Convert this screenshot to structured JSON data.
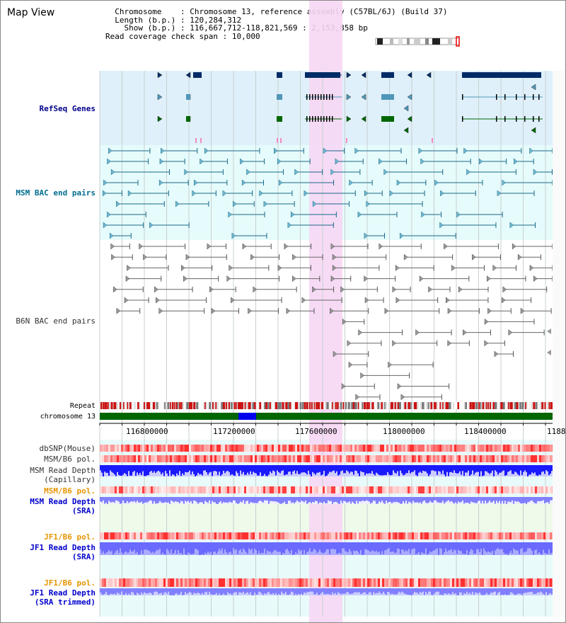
{
  "header": {
    "title": "Map View",
    "info": {
      "chromosome_label": "Chromosome",
      "chromosome_value": "Chromosome 13, reference assembly (C57BL/6J) (Build 37)",
      "length_label": "Length (b.p.)",
      "length_value": "120,284,312",
      "show_label": "Show (b.p.)",
      "show_value": "116,667,712-118,821,569 : 2,153,858 bp",
      "coverage_label": "Read coverage check span",
      "coverage_value": "10,000"
    }
  },
  "tracks": {
    "refseq": "RefSeq Genes",
    "msm_bac": "MSM BAC end pairs",
    "b6n_bac": "B6N BAC end pairs",
    "repeat": "Repeat",
    "chromosome": "chromosome 13",
    "dbsnp": "dbSNP(Mouse)",
    "msm_b6_pol": "MSM/B6 pol.",
    "msm_depth_cap_1": "MSM Read Depth",
    "msm_depth_cap_2": "(Capillary)",
    "msm_b6_pol_2": "MSM/B6 pol.",
    "msm_depth_sra_1": "MSM Read Depth",
    "msm_depth_sra_2": "(SRA)",
    "jf1_pol_1": "JF1/B6 pol.",
    "jf1_depth_sra_1": "JF1 Read Depth",
    "jf1_depth_sra_2": "(SRA)",
    "jf1_pol_2": "JF1/B6 pol.",
    "jf1_depth_trim_1": "JF1 Read Depth",
    "jf1_depth_trim_2": "(SRA trimmed)"
  },
  "axis": {
    "ticks": [
      "116800000",
      "117200000",
      "117600000",
      "118000000",
      "118400000",
      "1188"
    ]
  },
  "colors": {
    "refseq_bg": "#dff0fa",
    "bac_bg": "#e6fbfb",
    "highlight": "#f6d7f4",
    "gene_dark": "#002b66",
    "gene_blue": "#4f97b8",
    "gene_green": "#006600",
    "msm_pair": "#1a6a8a",
    "b6n_pair": "#555555",
    "repeat_red": "#cc1111",
    "chrom_green": "#006600",
    "chrom_blue": "#0000ee",
    "depth_blue": "#1a1aff",
    "depth_light": "#8080ff"
  }
}
